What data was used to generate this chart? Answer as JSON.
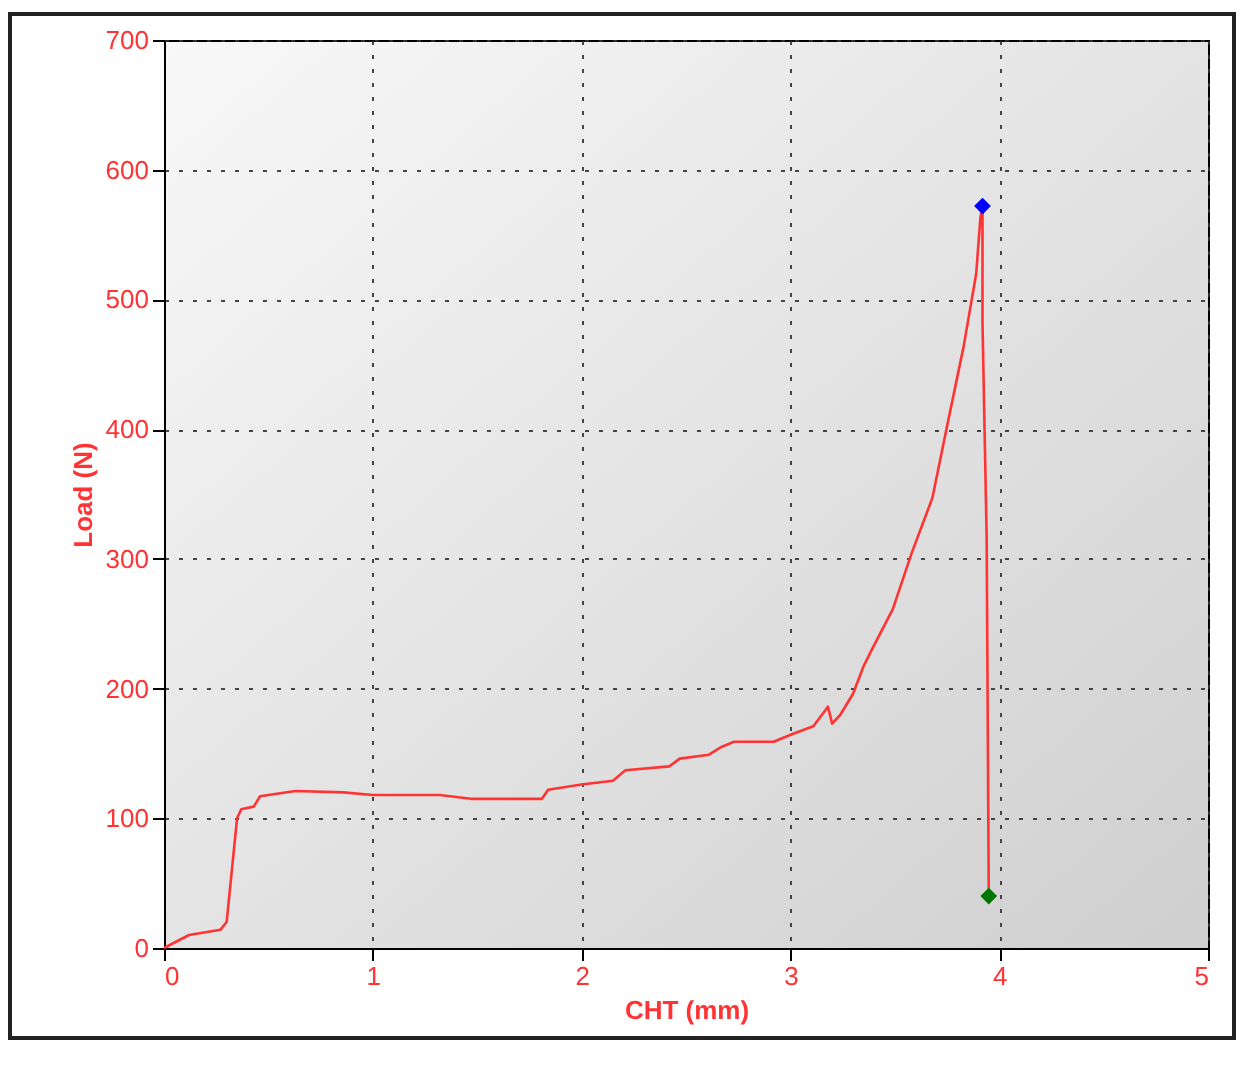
{
  "chart_data": {
    "type": "line",
    "xlabel": "CHT (mm)",
    "ylabel": "Load (N)",
    "xlim": [
      0,
      5
    ],
    "ylim": [
      0,
      700
    ],
    "xticks": [
      0,
      1,
      2,
      3,
      4,
      5
    ],
    "yticks": [
      0,
      100,
      200,
      300,
      400,
      500,
      600,
      700
    ],
    "grid": true,
    "series": [
      {
        "type": "line",
        "color": "#ff3333",
        "x": [
          0,
          0.12,
          0.27,
          0.3,
          0.35,
          0.37,
          0.43,
          0.46,
          0.63,
          0.86,
          1.0,
          1.32,
          1.47,
          1.81,
          1.84,
          2.0,
          2.15,
          2.21,
          2.42,
          2.47,
          2.61,
          2.67,
          2.73,
          2.92,
          3.01,
          3.11,
          3.18,
          3.2,
          3.24,
          3.3,
          3.35,
          3.39,
          3.49,
          3.58,
          3.68,
          3.75,
          3.83,
          3.89,
          3.91,
          3.92,
          3.92,
          3.94,
          3.95
        ],
        "values": [
          0,
          10,
          14,
          20,
          100,
          107,
          109,
          117,
          121,
          120,
          118,
          118,
          115,
          115,
          122,
          126,
          129,
          137,
          140,
          146,
          149,
          155,
          159,
          159,
          165,
          171,
          186,
          173,
          180,
          196,
          217,
          230,
          261,
          304,
          347,
          402,
          464,
          520,
          563,
          572,
          482,
          316,
          40
        ]
      },
      {
        "type": "scatter",
        "marker": "diamond",
        "colors": [
          "#0000ff",
          "#007700"
        ],
        "x": [
          3.92,
          3.95
        ],
        "values": [
          572,
          40
        ]
      }
    ]
  }
}
